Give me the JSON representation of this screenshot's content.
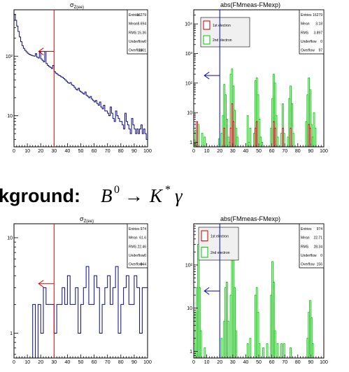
{
  "section_heading": {
    "label": "kground:",
    "math_B": "B",
    "math_B_sup": "0",
    "math_arrow": "→",
    "math_K": "K",
    "math_K_sup": "*",
    "math_gamma": "γ"
  },
  "colors": {
    "sigma_hist": "#0b0b8a",
    "first_electron": "#cc0000",
    "second_electron": "#00cc00",
    "sigma_cut": "#dd0000",
    "fm_cut": "#0000cc"
  },
  "chart_data": [
    {
      "id": "p1",
      "type": "bar",
      "log_y": true,
      "hist_color": "#0b0b8a",
      "title": "σ",
      "title_sub": "Z(ee)",
      "xlim": [
        0,
        100
      ],
      "ylim": [
        3,
        600
      ],
      "x_ticks": [
        "0",
        "10",
        "20",
        "30",
        "40",
        "50",
        "60",
        "70",
        "80",
        "90",
        "100"
      ],
      "y_ticks": [
        {
          "v": 10,
          "label": "10"
        },
        {
          "v": 100,
          "label": "10²"
        }
      ],
      "stats": [
        [
          "Entries",
          "16279"
        ],
        [
          "Mean",
          "8.694"
        ],
        [
          "RMS",
          "15.36"
        ],
        [
          "Underflow",
          "0"
        ],
        [
          "Overflow",
          "2301"
        ]
      ],
      "cut": {
        "x": 30,
        "color": "#dd0000",
        "arrow_y": 120
      },
      "bin_width": 1,
      "values": [
        500,
        400,
        320,
        260,
        210,
        175,
        150,
        135,
        125,
        118,
        112,
        108,
        105,
        103,
        101,
        100,
        110,
        96,
        93,
        118,
        90,
        85,
        80,
        120,
        75,
        70,
        67,
        65,
        62,
        70,
        55,
        52,
        50,
        48,
        47,
        45,
        44,
        42,
        40,
        38,
        36,
        35,
        36,
        33,
        32,
        30,
        28,
        27,
        29,
        26,
        25,
        24,
        23,
        25,
        22,
        21,
        20,
        21,
        19,
        18,
        17,
        18,
        16,
        15,
        17,
        14,
        13,
        15,
        12,
        12,
        11,
        10,
        14,
        11,
        9,
        8,
        12,
        10,
        9,
        8,
        8,
        7,
        6,
        11,
        8,
        7,
        6,
        5,
        9,
        7,
        6,
        5,
        6,
        5,
        6,
        7,
        5,
        6,
        5,
        4
      ]
    },
    {
      "id": "p2",
      "type": "bar",
      "log_y": true,
      "title": "abs(FMmeas-FMexp)",
      "xlim": [
        0,
        100
      ],
      "ylim": [
        0.7,
        30000
      ],
      "x_ticks": [
        "0",
        "10",
        "20",
        "30",
        "40",
        "50",
        "60",
        "70",
        "80",
        "90",
        "100"
      ],
      "y_ticks": [
        {
          "v": 1,
          "label": "1"
        },
        {
          "v": 10,
          "label": "10"
        },
        {
          "v": 100,
          "label": "10²"
        },
        {
          "v": 1000,
          "label": "10³"
        },
        {
          "v": 10000,
          "label": "10⁴"
        }
      ],
      "stats": [
        [
          "Entries",
          "16279"
        ],
        [
          "Mean",
          "3.18"
        ],
        [
          "RMS",
          "3.897"
        ],
        [
          "Underflow",
          "0"
        ],
        [
          "Overflow",
          "97"
        ]
      ],
      "legend": [
        "1st electron",
        "2nd electron"
      ],
      "cut": {
        "x": 20,
        "color": "#0000cc",
        "arrow_y": 180
      },
      "series": [
        {
          "name": "2nd electron",
          "color": "#00cc00",
          "bins": [
            [
              0,
              1,
              1.2
            ],
            [
              1,
              2,
              2.5
            ],
            [
              2,
              3,
              1
            ],
            [
              3,
              4,
              4
            ],
            [
              6,
              7,
              2
            ],
            [
              8,
              9,
              1.5
            ],
            [
              19,
              20,
              1.3
            ],
            [
              21,
              22,
              2
            ],
            [
              22,
              23,
              8
            ],
            [
              23,
              24,
              90
            ],
            [
              24,
              25,
              40
            ],
            [
              25,
              26,
              6
            ],
            [
              26,
              27,
              1.5
            ],
            [
              27,
              28,
              1
            ],
            [
              28,
              29,
              200
            ],
            [
              29,
              30,
              300
            ],
            [
              30,
              31,
              80
            ],
            [
              31,
              32,
              12
            ],
            [
              32,
              33,
              3
            ],
            [
              33,
              34,
              1.5
            ],
            [
              41,
              42,
              8
            ],
            [
              42,
              43,
              1
            ],
            [
              43,
              44,
              3
            ],
            [
              46,
              47,
              2
            ],
            [
              47,
              48,
              120
            ],
            [
              48,
              49,
              150
            ],
            [
              49,
              50,
              40
            ],
            [
              50,
              51,
              6
            ],
            [
              51,
              52,
              1.5
            ],
            [
              52,
              53,
              1
            ],
            [
              59,
              60,
              3
            ],
            [
              60,
              61,
              30
            ],
            [
              61,
              62,
              200
            ],
            [
              62,
              63,
              100
            ],
            [
              63,
              64,
              8
            ],
            [
              64,
              65,
              1.5
            ],
            [
              67,
              68,
              2
            ],
            [
              68,
              69,
              20
            ],
            [
              69,
              70,
              2
            ],
            [
              72,
              73,
              1.5
            ],
            [
              73,
              74,
              30
            ],
            [
              74,
              75,
              80
            ],
            [
              75,
              76,
              20
            ],
            [
              76,
              77,
              2
            ],
            [
              86,
              87,
              5
            ],
            [
              87,
              88,
              40
            ],
            [
              88,
              89,
              150
            ],
            [
              89,
              90,
              60
            ],
            [
              90,
              91,
              4
            ],
            [
              91,
              92,
              1.5
            ],
            [
              92,
              93,
              10
            ],
            [
              93,
              94,
              3
            ]
          ]
        },
        {
          "name": "1st electron",
          "color": "#cc0000",
          "bins": [
            [
              2,
              3,
              5
            ],
            [
              23,
              24,
              3
            ],
            [
              28,
              29,
              3
            ],
            [
              29,
              30,
              20
            ],
            [
              30,
              31,
              5
            ],
            [
              47,
              48,
              3
            ],
            [
              48,
              49,
              5
            ],
            [
              61,
              62,
              5
            ],
            [
              62,
              63,
              3
            ],
            [
              68,
              69,
              3
            ],
            [
              74,
              75,
              3
            ],
            [
              88,
              89,
              4
            ],
            [
              89,
              90,
              3
            ]
          ]
        }
      ]
    },
    {
      "id": "p3",
      "type": "bar",
      "log_y": true,
      "hist_color": "#0b0b8a",
      "title": "σ",
      "title_sub": "Z(ee)",
      "xlim": [
        0,
        100
      ],
      "ylim": [
        0.55,
        14
      ],
      "x_ticks": [
        "0",
        "10",
        "20",
        "30",
        "40",
        "50",
        "60",
        "70",
        "80",
        "90",
        "100"
      ],
      "y_ticks": [
        {
          "v": 1,
          "label": "1"
        },
        {
          "v": 10,
          "label": "10"
        }
      ],
      "stats": [
        [
          "Entries",
          "974"
        ],
        [
          "Mean",
          "61.6"
        ],
        [
          "RMS",
          "22.46"
        ],
        [
          "Underflow",
          "0"
        ],
        [
          "Overflow",
          "844"
        ]
      ],
      "cut": {
        "x": 30,
        "color": "#dd0000",
        "arrow_y": 3.3
      },
      "bin_width": 2,
      "values": [
        0,
        0,
        0,
        0,
        0,
        0,
        0,
        2,
        0,
        2,
        1,
        3,
        2,
        2,
        2,
        1,
        2,
        2,
        3,
        2,
        4,
        2,
        2,
        3,
        1,
        2,
        3,
        5,
        2,
        2,
        4,
        3,
        1,
        2,
        3,
        4,
        2,
        3,
        5,
        1,
        2,
        3,
        4,
        2,
        2,
        4,
        3,
        1,
        3,
        3
      ]
    },
    {
      "id": "p4",
      "type": "bar",
      "log_y": true,
      "title": "abs(FMmeas-FMexp)",
      "xlim": [
        0,
        100
      ],
      "ylim": [
        0.7,
        900
      ],
      "x_ticks": [
        "0",
        "10",
        "20",
        "30",
        "40",
        "50",
        "60",
        "70",
        "80",
        "90",
        "100"
      ],
      "y_ticks": [
        {
          "v": 1,
          "label": "1"
        },
        {
          "v": 10,
          "label": "10"
        },
        {
          "v": 100,
          "label": "10²"
        }
      ],
      "stats": [
        [
          "Entries",
          "974"
        ],
        [
          "Mean",
          "22.71"
        ],
        [
          "RMS",
          "28.34"
        ],
        [
          "Underflow",
          "0"
        ],
        [
          "Overflow",
          "156"
        ]
      ],
      "legend": [
        "1st electron",
        "2nd electron"
      ],
      "cut": {
        "x": 20,
        "color": "#0000cc",
        "arrow_y": 25
      },
      "series": [
        {
          "name": "2nd electron",
          "color": "#00cc00",
          "bins": [
            [
              0,
              1,
              1.5
            ],
            [
              1,
              2,
              8
            ],
            [
              2,
              3,
              30
            ],
            [
              3,
              4,
              300
            ],
            [
              4,
              5,
              30
            ],
            [
              5,
              6,
              3
            ],
            [
              8,
              9,
              1.2
            ],
            [
              21,
              22,
              2
            ],
            [
              23,
              24,
              5
            ],
            [
              24,
              25,
              30
            ],
            [
              25,
              26,
              40
            ],
            [
              26,
              27,
              5
            ],
            [
              28,
              29,
              20
            ],
            [
              29,
              30,
              150
            ],
            [
              30,
              31,
              200
            ],
            [
              31,
              32,
              30
            ],
            [
              32,
              33,
              3
            ],
            [
              41,
              42,
              1.5
            ],
            [
              43,
              44,
              2
            ],
            [
              47,
              48,
              20
            ],
            [
              48,
              49,
              30
            ],
            [
              49,
              50,
              8
            ],
            [
              50,
              51,
              1.5
            ],
            [
              53,
              54,
              1.2
            ],
            [
              56,
              57,
              1.5
            ],
            [
              59,
              60,
              20
            ],
            [
              60,
              61,
              120
            ],
            [
              61,
              62,
              40
            ],
            [
              62,
              63,
              3
            ],
            [
              64,
              65,
              1.5
            ],
            [
              67,
              68,
              1.5
            ],
            [
              69,
              70,
              1.5
            ],
            [
              74,
              75,
              1.2
            ],
            [
              87,
              88,
              2
            ],
            [
              88,
              89,
              8
            ],
            [
              89,
              90,
              15
            ],
            [
              90,
              91,
              6
            ],
            [
              91,
              92,
              1.5
            ]
          ]
        }
      ]
    }
  ]
}
